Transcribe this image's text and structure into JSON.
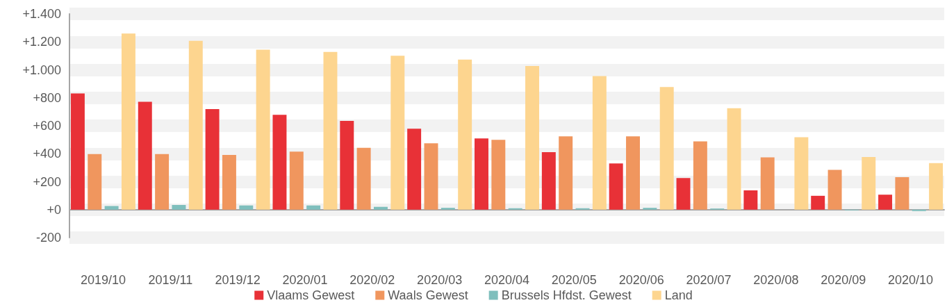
{
  "chart_data": {
    "type": "bar",
    "categories": [
      "2019/10",
      "2019/11",
      "2019/12",
      "2020/01",
      "2020/02",
      "2020/03",
      "2020/04",
      "2020/05",
      "2020/06",
      "2020/07",
      "2020/08",
      "2020/09",
      "2020/10"
    ],
    "series": [
      {
        "name": "Vlaams Gewest",
        "color": "#e83137",
        "values": [
          831,
          772,
          719,
          678,
          635,
          579,
          509,
          411,
          331,
          226,
          138,
          99,
          107
        ]
      },
      {
        "name": "Waals Gewest",
        "color": "#f0965e",
        "values": [
          397,
          397,
          391,
          415,
          442,
          475,
          500,
          524,
          524,
          488,
          374,
          284,
          232
        ]
      },
      {
        "name": "Brussels Hfdst. Gewest",
        "color": "#7fbfbd",
        "values": [
          26,
          33,
          30,
          30,
          20,
          13,
          10,
          10,
          13,
          8,
          0,
          -5,
          -10
        ]
      },
      {
        "name": "Land",
        "color": "#fdd58f",
        "values": [
          1260,
          1207,
          1144,
          1128,
          1101,
          1073,
          1027,
          955,
          877,
          725,
          518,
          376,
          333
        ]
      }
    ],
    "ylim": [
      -200,
      1400
    ],
    "yticks": [
      {
        "value": -200,
        "label": "-200"
      },
      {
        "value": 0,
        "label": "+0"
      },
      {
        "value": 200,
        "label": "+200"
      },
      {
        "value": 400,
        "label": "+400"
      },
      {
        "value": 600,
        "label": "+600"
      },
      {
        "value": 800,
        "label": "+800"
      },
      {
        "value": 1000,
        "label": "+1.000"
      },
      {
        "value": 1200,
        "label": "+1.200"
      },
      {
        "value": 1400,
        "label": "+1.400"
      }
    ],
    "grid": "y",
    "legend": "bottom"
  }
}
